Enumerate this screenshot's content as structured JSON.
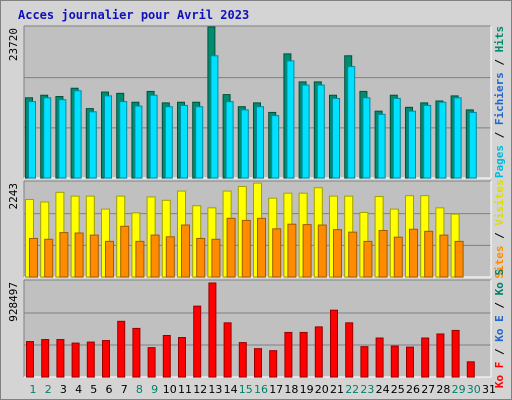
{
  "title": "Acces journalier pour Avril 2023",
  "colors": {
    "panel_bg": "#c0c0c0",
    "frame_bg": "#d4d4d4",
    "pages": "#00e0ff",
    "pages_edge": "#008ba0",
    "hits": "#008c6e",
    "visits": "#ffff00",
    "visits_edge": "#a0a000",
    "sites": "#ff8c00",
    "sites_edge": "#a05a00",
    "kb": "#ff0000",
    "kb_edge": "#990000",
    "weekend_label": "#00806a",
    "weekday_label": "#000000"
  },
  "chart_data": [
    {
      "type": "bar",
      "name": "hits-files-pages",
      "y_max_label": "23720",
      "ylim": [
        0,
        23720
      ],
      "right_labels": [
        {
          "text": "Pages",
          "color": "#00bbdd"
        },
        {
          "text": " / ",
          "color": "#000000"
        },
        {
          "text": "Fichiers",
          "color": "#2266cc"
        },
        {
          "text": " / ",
          "color": "#000000"
        },
        {
          "text": "Hits",
          "color": "#008c6e"
        }
      ],
      "series": [
        {
          "name": "Hits",
          "values": [
            12600,
            13000,
            12800,
            14100,
            10900,
            13500,
            13300,
            11900,
            13600,
            11800,
            11900,
            11900,
            23720,
            13100,
            11200,
            11800,
            10300,
            19500,
            15100,
            15100,
            13000,
            19200,
            13600,
            10500,
            13000,
            11100,
            11800,
            12100,
            12900,
            10700
          ]
        },
        {
          "name": "Fichiers",
          "values": [
            12000,
            12600,
            12300,
            13700,
            10400,
            12900,
            12000,
            11300,
            13000,
            11200,
            11400,
            11200,
            19200,
            12000,
            10700,
            11200,
            9800,
            18400,
            14600,
            14600,
            12500,
            17500,
            12600,
            10000,
            12500,
            10500,
            11400,
            11900,
            12600,
            10300
          ]
        },
        {
          "name": "Pages",
          "values": [
            12000,
            12600,
            12300,
            13700,
            10400,
            12900,
            12000,
            11300,
            13000,
            11200,
            11400,
            11200,
            19200,
            12000,
            10700,
            11200,
            9800,
            18400,
            14600,
            14600,
            12500,
            17500,
            12600,
            10000,
            12500,
            10500,
            11400,
            11900,
            12600,
            10300
          ]
        }
      ]
    },
    {
      "type": "bar",
      "name": "visits-sites",
      "y_max_label": "2243",
      "ylim": [
        0,
        2243
      ],
      "right_labels": [
        {
          "text": "Sites",
          "color": "#ff8c00"
        },
        {
          "text": " / ",
          "color": "#000000"
        },
        {
          "text": "Visites",
          "color": "#dddd00"
        }
      ],
      "series": [
        {
          "name": "Visites",
          "values": [
            1850,
            1790,
            2020,
            1930,
            1930,
            1620,
            1930,
            1530,
            1910,
            1830,
            2050,
            1700,
            1650,
            2050,
            2160,
            2240,
            1880,
            2000,
            2000,
            2130,
            1930,
            1930,
            1540,
            1920,
            1620,
            1940,
            1940,
            1650,
            1500,
            0
          ]
        },
        {
          "name": "Sites",
          "values": [
            920,
            900,
            1060,
            1050,
            1000,
            850,
            1210,
            850,
            1000,
            960,
            1240,
            920,
            900,
            1400,
            1350,
            1400,
            1150,
            1260,
            1250,
            1240,
            1130,
            1070,
            850,
            1110,
            950,
            1140,
            1090,
            1000,
            850,
            0
          ]
        }
      ]
    },
    {
      "type": "bar",
      "name": "kb",
      "y_max_label": "928497",
      "ylim": [
        0,
        928497
      ],
      "right_labels": [
        {
          "text": "Ko F",
          "color": "#ff0000"
        },
        {
          "text": " / ",
          "color": "#000000"
        },
        {
          "text": "Ko E",
          "color": "#2266cc"
        },
        {
          "text": " / ",
          "color": "#000000"
        },
        {
          "text": "Ko S",
          "color": "#00806a"
        }
      ],
      "series": [
        {
          "name": "Ko F",
          "values": [
            350000,
            370000,
            370000,
            335000,
            345000,
            360000,
            550000,
            480000,
            290000,
            410000,
            390000,
            700000,
            928497,
            535000,
            340000,
            280000,
            260000,
            440000,
            440000,
            495000,
            660000,
            535000,
            300000,
            385000,
            305000,
            295000,
            385000,
            425000,
            460000,
            150000
          ]
        }
      ]
    }
  ],
  "x_labels": [
    {
      "text": "1",
      "weekend": true
    },
    {
      "text": "2",
      "weekend": true
    },
    {
      "text": "3",
      "weekend": false
    },
    {
      "text": "4",
      "weekend": false
    },
    {
      "text": "5",
      "weekend": false
    },
    {
      "text": "6",
      "weekend": false
    },
    {
      "text": "7",
      "weekend": false
    },
    {
      "text": "8",
      "weekend": true
    },
    {
      "text": "9",
      "weekend": true
    },
    {
      "text": "10",
      "weekend": false
    },
    {
      "text": "11",
      "weekend": false
    },
    {
      "text": "12",
      "weekend": false
    },
    {
      "text": "13",
      "weekend": false
    },
    {
      "text": "14",
      "weekend": false
    },
    {
      "text": "15",
      "weekend": true
    },
    {
      "text": "16",
      "weekend": true
    },
    {
      "text": "17",
      "weekend": false
    },
    {
      "text": "18",
      "weekend": false
    },
    {
      "text": "19",
      "weekend": false
    },
    {
      "text": "20",
      "weekend": false
    },
    {
      "text": "21",
      "weekend": false
    },
    {
      "text": "22",
      "weekend": true
    },
    {
      "text": "23",
      "weekend": true
    },
    {
      "text": "24",
      "weekend": false
    },
    {
      "text": "25",
      "weekend": false
    },
    {
      "text": "26",
      "weekend": false
    },
    {
      "text": "27",
      "weekend": false
    },
    {
      "text": "28",
      "weekend": false
    },
    {
      "text": "29",
      "weekend": true
    },
    {
      "text": "30",
      "weekend": true
    },
    {
      "text": "31",
      "weekend": false
    }
  ]
}
